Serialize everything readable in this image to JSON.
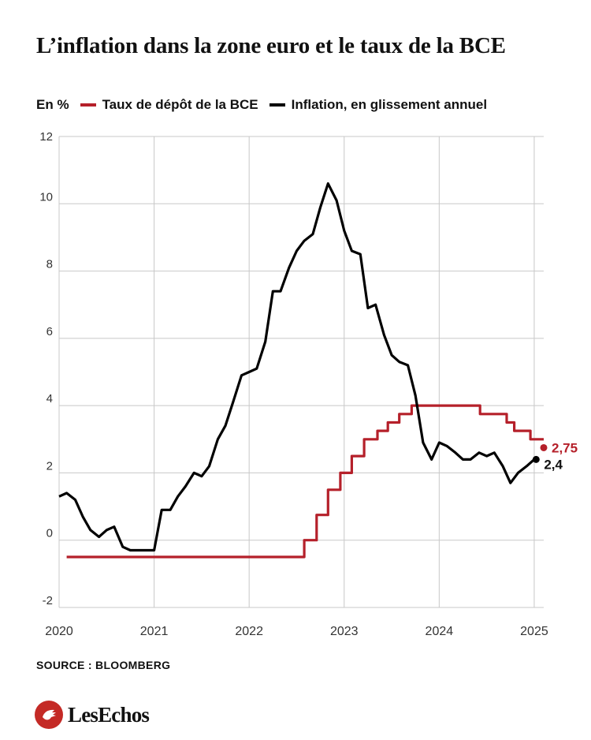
{
  "title": "L’inflation dans la zone euro et le taux de la BCE",
  "unit_label": "En %",
  "source": "SOURCE : BLOOMBERG",
  "brand": "LesEchos",
  "colors": {
    "rate": "#b5202a",
    "inflation": "#000000",
    "grid": "#c8c8c8"
  },
  "chart_data": {
    "type": "line",
    "x_unit": "year (fractional)",
    "xlim": [
      2020,
      2025.1
    ],
    "ylim": [
      -2,
      12
    ],
    "x_ticks": [
      "2020",
      "2021",
      "2022",
      "2023",
      "2024",
      "2025"
    ],
    "y_ticks": [
      "-2",
      "0",
      "2",
      "4",
      "6",
      "8",
      "10",
      "12"
    ],
    "grid": {
      "horizontal": true,
      "vertical": true
    },
    "legend_position": "top-left",
    "series": [
      {
        "name": "Taux de dépôt de la BCE",
        "color": "#b5202a",
        "style": "step",
        "end_label": "2,75",
        "points": [
          [
            2020.08,
            -0.5
          ],
          [
            2022.58,
            -0.5
          ],
          [
            2022.58,
            0
          ],
          [
            2022.71,
            0
          ],
          [
            2022.71,
            0.75
          ],
          [
            2022.83,
            0.75
          ],
          [
            2022.83,
            1.5
          ],
          [
            2022.96,
            1.5
          ],
          [
            2022.96,
            2.0
          ],
          [
            2023.08,
            2.0
          ],
          [
            2023.08,
            2.5
          ],
          [
            2023.21,
            2.5
          ],
          [
            2023.21,
            3.0
          ],
          [
            2023.35,
            3.0
          ],
          [
            2023.35,
            3.25
          ],
          [
            2023.46,
            3.25
          ],
          [
            2023.46,
            3.5
          ],
          [
            2023.58,
            3.5
          ],
          [
            2023.58,
            3.75
          ],
          [
            2023.71,
            3.75
          ],
          [
            2023.71,
            4.0
          ],
          [
            2024.43,
            4.0
          ],
          [
            2024.43,
            3.75
          ],
          [
            2024.71,
            3.75
          ],
          [
            2024.71,
            3.5
          ],
          [
            2024.79,
            3.5
          ],
          [
            2024.79,
            3.25
          ],
          [
            2024.96,
            3.25
          ],
          [
            2024.96,
            3.0
          ],
          [
            2025.1,
            3.0
          ]
        ],
        "end_point": [
          2025.1,
          2.75
        ]
      },
      {
        "name": "Inflation, en glissement annuel",
        "color": "#000000",
        "style": "line",
        "end_label": "2,4",
        "points": [
          [
            2020.0,
            1.3
          ],
          [
            2020.08,
            1.4
          ],
          [
            2020.17,
            1.2
          ],
          [
            2020.25,
            0.7
          ],
          [
            2020.33,
            0.3
          ],
          [
            2020.42,
            0.1
          ],
          [
            2020.5,
            0.3
          ],
          [
            2020.58,
            0.4
          ],
          [
            2020.67,
            -0.2
          ],
          [
            2020.75,
            -0.3
          ],
          [
            2020.83,
            -0.3
          ],
          [
            2020.92,
            -0.3
          ],
          [
            2021.0,
            -0.3
          ],
          [
            2021.08,
            0.9
          ],
          [
            2021.17,
            0.9
          ],
          [
            2021.25,
            1.3
          ],
          [
            2021.33,
            1.6
          ],
          [
            2021.42,
            2.0
          ],
          [
            2021.5,
            1.9
          ],
          [
            2021.58,
            2.2
          ],
          [
            2021.67,
            3.0
          ],
          [
            2021.75,
            3.4
          ],
          [
            2021.83,
            4.1
          ],
          [
            2021.92,
            4.9
          ],
          [
            2022.0,
            5.0
          ],
          [
            2022.08,
            5.1
          ],
          [
            2022.17,
            5.9
          ],
          [
            2022.25,
            7.4
          ],
          [
            2022.33,
            7.4
          ],
          [
            2022.42,
            8.1
          ],
          [
            2022.5,
            8.6
          ],
          [
            2022.58,
            8.9
          ],
          [
            2022.67,
            9.1
          ],
          [
            2022.75,
            9.9
          ],
          [
            2022.83,
            10.6
          ],
          [
            2022.92,
            10.1
          ],
          [
            2023.0,
            9.2
          ],
          [
            2023.08,
            8.6
          ],
          [
            2023.17,
            8.5
          ],
          [
            2023.25,
            6.9
          ],
          [
            2023.33,
            7.0
          ],
          [
            2023.42,
            6.1
          ],
          [
            2023.5,
            5.5
          ],
          [
            2023.58,
            5.3
          ],
          [
            2023.67,
            5.2
          ],
          [
            2023.75,
            4.3
          ],
          [
            2023.83,
            2.9
          ],
          [
            2023.92,
            2.4
          ],
          [
            2024.0,
            2.9
          ],
          [
            2024.08,
            2.8
          ],
          [
            2024.17,
            2.6
          ],
          [
            2024.25,
            2.4
          ],
          [
            2024.33,
            2.4
          ],
          [
            2024.42,
            2.6
          ],
          [
            2024.5,
            2.5
          ],
          [
            2024.58,
            2.6
          ],
          [
            2024.67,
            2.2
          ],
          [
            2024.75,
            1.7
          ],
          [
            2024.83,
            2.0
          ],
          [
            2024.92,
            2.2
          ],
          [
            2025.0,
            2.4
          ]
        ],
        "end_point": [
          2025.02,
          2.4
        ]
      }
    ]
  }
}
